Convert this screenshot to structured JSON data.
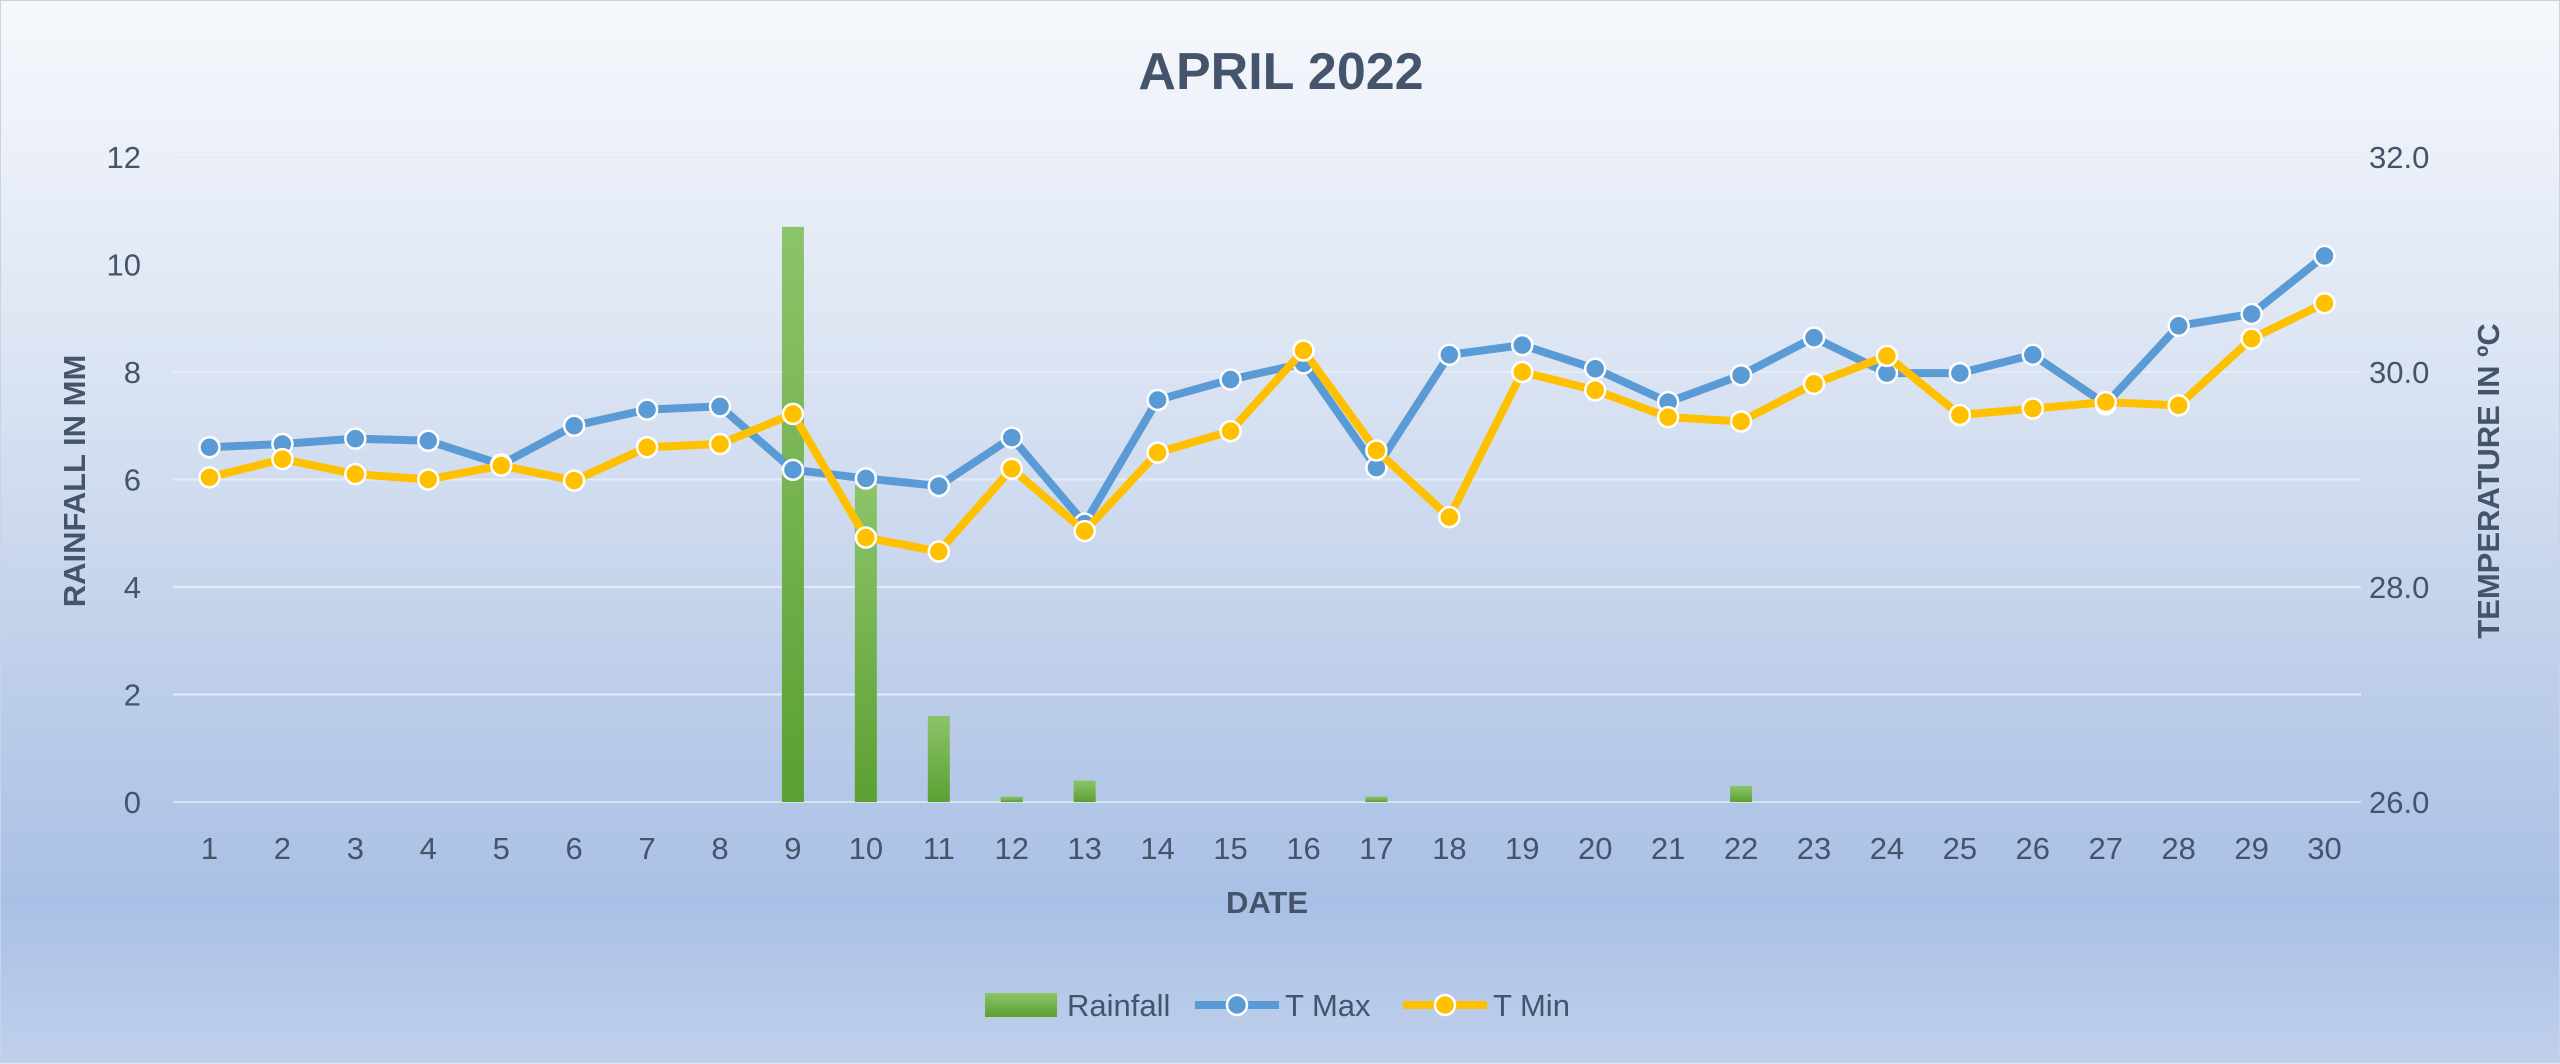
{
  "chart_data": {
    "type": "bar",
    "title": "APRIL 2022",
    "xlabel": "DATE",
    "ylabel": "RAINFALL IN MM",
    "y2label": "TEMPERATURE IN ºC",
    "ylim": [
      0,
      12
    ],
    "y_ticks": [
      "0",
      "2",
      "4",
      "6",
      "8",
      "10",
      "12"
    ],
    "y2lim": [
      26.0,
      32.0
    ],
    "y2_ticks": [
      "26.0",
      "28.0",
      "30.0",
      "32.0"
    ],
    "categories": [
      "1",
      "2",
      "3",
      "4",
      "5",
      "6",
      "7",
      "8",
      "9",
      "10",
      "11",
      "12",
      "13",
      "14",
      "15",
      "16",
      "17",
      "18",
      "19",
      "20",
      "21",
      "22",
      "23",
      "24",
      "25",
      "26",
      "27",
      "28",
      "29",
      "30"
    ],
    "grid": true,
    "legend_position": "bottom",
    "series": [
      {
        "name": "Rainfall",
        "type": "bar",
        "axis": "left",
        "color": "#70ad47",
        "values": [
          0,
          0,
          0,
          0,
          0,
          0,
          0,
          0,
          10.7,
          5.9,
          1.6,
          0.1,
          0.4,
          0,
          0,
          0,
          0.1,
          0,
          0,
          0,
          0,
          0.3,
          0,
          0,
          0,
          0,
          0,
          0,
          0,
          0
        ]
      },
      {
        "name": "T Max",
        "type": "line",
        "axis": "right",
        "color": "#5b9bd5",
        "values": [
          29.3,
          29.33,
          29.38,
          29.36,
          29.14,
          29.5,
          29.65,
          29.68,
          29.09,
          29.01,
          28.94,
          29.39,
          28.59,
          29.74,
          29.93,
          30.08,
          29.11,
          30.16,
          30.25,
          30.03,
          29.72,
          29.97,
          30.32,
          29.99,
          29.99,
          30.16,
          29.7,
          30.43,
          30.54,
          31.08
        ],
        "marker": "circle"
      },
      {
        "name": "T Min",
        "type": "line",
        "axis": "right",
        "color": "#ffc000",
        "values": [
          29.02,
          29.19,
          29.05,
          29.0,
          29.13,
          28.99,
          29.3,
          29.33,
          29.61,
          28.46,
          28.33,
          29.1,
          28.52,
          29.25,
          29.45,
          30.2,
          29.27,
          28.65,
          30.0,
          29.83,
          29.58,
          29.54,
          29.89,
          30.15,
          29.6,
          29.66,
          29.72,
          29.69,
          30.31,
          30.64
        ],
        "marker": "circle"
      }
    ]
  }
}
